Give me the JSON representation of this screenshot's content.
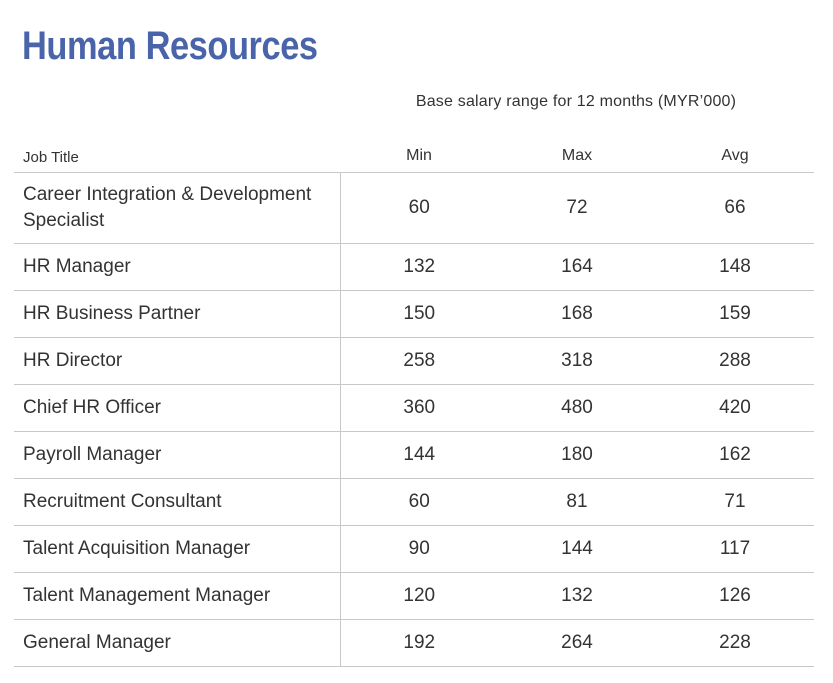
{
  "title": "Human Resources",
  "subtitle": "Base salary range for 12 months (MYR’000)",
  "columns": {
    "job_title": "Job Title",
    "min": "Min",
    "max": "Max",
    "avg": "Avg"
  },
  "rows": [
    {
      "job": "Career Integration & Development Specialist",
      "min": "60",
      "max": "72",
      "avg": "66"
    },
    {
      "job": "HR Manager",
      "min": "132",
      "max": "164",
      "avg": "148"
    },
    {
      "job": "HR Business Partner",
      "min": "150",
      "max": "168",
      "avg": "159"
    },
    {
      "job": "HR Director",
      "min": "258",
      "max": "318",
      "avg": "288"
    },
    {
      "job": "Chief HR Officer",
      "min": "360",
      "max": "480",
      "avg": "420"
    },
    {
      "job": "Payroll Manager",
      "min": "144",
      "max": "180",
      "avg": "162"
    },
    {
      "job": "Recruitment Consultant",
      "min": "60",
      "max": "81",
      "avg": "71"
    },
    {
      "job": "Talent Acquisition Manager",
      "min": "90",
      "max": "144",
      "avg": "117"
    },
    {
      "job": "Talent Management Manager",
      "min": "120",
      "max": "132",
      "avg": "126"
    },
    {
      "job": "General Manager",
      "min": "192",
      "max": "264",
      "avg": "228"
    }
  ],
  "colors": {
    "title": "#4a64aa",
    "text": "#333333",
    "rule": "#c8c8c8"
  }
}
